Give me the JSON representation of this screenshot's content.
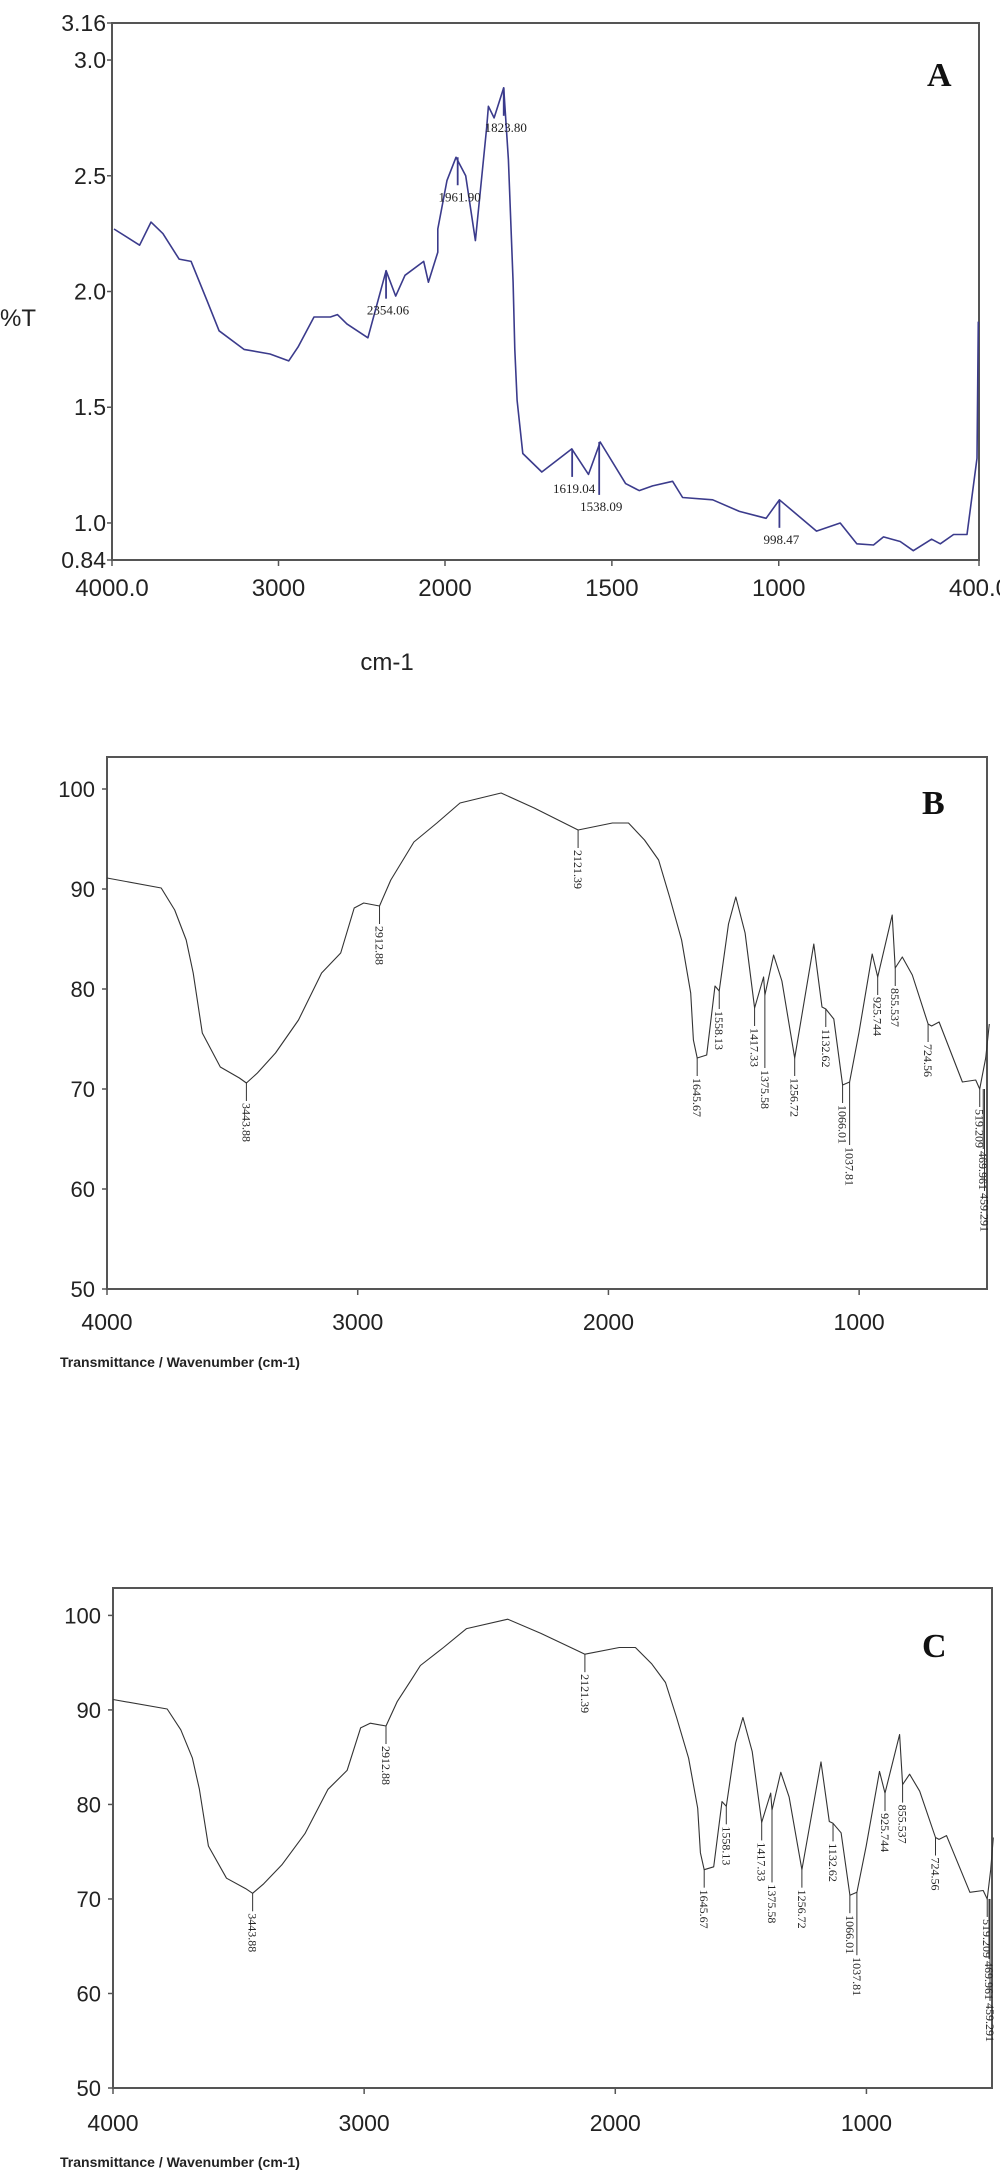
{
  "chart_data": [
    {
      "type": "line",
      "panel_label": "A",
      "ylabel": "%T",
      "xlabel": "cm-1",
      "xlim": [
        4000,
        400
      ],
      "ylim": [
        0.84,
        3.16
      ],
      "x_ticks": [
        "4000.0",
        "3000",
        "2000",
        "1500",
        "1000",
        "400.0"
      ],
      "x_tick_values": [
        4000,
        3000,
        2000,
        1500,
        1000,
        400
      ],
      "y_ticks": [
        "3.16",
        "3.0",
        "2.5",
        "2.0",
        "1.5",
        "1.0",
        "0.84"
      ],
      "y_tick_values": [
        3.16,
        3.0,
        2.5,
        2.0,
        1.5,
        1.0,
        0.84
      ],
      "color": "#3b3b8c",
      "series": [
        {
          "name": "A",
          "x": [
            3988,
            3834,
            3766,
            3694,
            3597,
            3525,
            3429,
            3357,
            3207,
            3051,
            2939,
            2883,
            2787,
            2688,
            2646,
            2589,
            2463,
            2354,
            2296,
            2240,
            2128,
            2100,
            2043,
            2043,
            1994,
            1967,
            1938,
            1909,
            1875,
            1870,
            1853,
            1824,
            1810,
            1796,
            1791,
            1784,
            1767,
            1710,
            1620,
            1570,
            1535,
            1459,
            1418,
            1378,
            1318,
            1288,
            1198,
            1118,
            1038,
            998,
            887,
            816,
            766,
            716,
            686,
            636,
            597,
            542,
            516,
            476,
            436,
            406,
            402
          ],
          "y": [
            2.27,
            2.2,
            2.3,
            2.25,
            2.14,
            2.13,
            1.96,
            1.83,
            1.75,
            1.73,
            1.7,
            1.76,
            1.89,
            1.89,
            1.9,
            1.86,
            1.8,
            2.09,
            1.98,
            2.07,
            2.13,
            2.04,
            2.17,
            2.27,
            2.48,
            2.58,
            2.5,
            2.22,
            2.71,
            2.8,
            2.75,
            2.88,
            2.57,
            2.04,
            1.75,
            1.53,
            1.3,
            1.22,
            1.32,
            1.21,
            1.35,
            1.17,
            1.14,
            1.16,
            1.18,
            1.11,
            1.1,
            1.05,
            1.02,
            1.1,
            0.965,
            1.0,
            0.91,
            0.905,
            0.94,
            0.92,
            0.88,
            0.93,
            0.91,
            0.95,
            0.95,
            1.28,
            1.87
          ]
        }
      ],
      "peaks": [
        {
          "label": "2354.06",
          "x": 2354,
          "y": 2.09
        },
        {
          "label": "1961.90",
          "x": 1962,
          "y": 2.58
        },
        {
          "label": "1823.80",
          "x": 1824,
          "y": 2.88
        },
        {
          "label": "1619.04",
          "x": 1619,
          "y": 1.32
        },
        {
          "label": "1538.09",
          "x": 1538,
          "y": 1.35
        },
        {
          "label": "998.47",
          "x": 998,
          "y": 1.1
        }
      ]
    },
    {
      "type": "line",
      "panel_label": "B",
      "xlabel": "Transmittance / Wavenumber (cm-1)",
      "xlim": [
        4000,
        490
      ],
      "ylim": [
        50,
        103.2
      ],
      "x_ticks": [
        "4000",
        "3000",
        "2000",
        "1000"
      ],
      "x_tick_values": [
        4000,
        3000,
        2000,
        1000
      ],
      "y_ticks": [
        "100",
        "90",
        "80",
        "70",
        "60",
        "50"
      ],
      "y_tick_values": [
        100,
        90,
        80,
        70,
        60,
        50
      ],
      "color": "#333333",
      "series": [
        {
          "name": "B",
          "x": [
            4000,
            3784,
            3730,
            3684,
            3656,
            3620,
            3548,
            3472,
            3444,
            3400,
            3328,
            3236,
            3144,
            3068,
            3014,
            2976,
            2913,
            2868,
            2812,
            2776,
            2684,
            2592,
            2428,
            2296,
            2121,
            1984,
            1920,
            1856,
            1800,
            1756,
            1708,
            1672,
            1661,
            1646,
            1608,
            1575,
            1558,
            1521,
            1492,
            1455,
            1417,
            1381,
            1376,
            1341,
            1308,
            1257,
            1181,
            1148,
            1133,
            1101,
            1066,
            1038,
            1001,
            948,
            926,
            868,
            856,
            828,
            788,
            725,
            711,
            681,
            588,
            535,
            519,
            495,
            481
          ],
          "y": [
            91.1,
            90.1,
            87.9,
            84.9,
            81.6,
            75.6,
            72.2,
            71.1,
            70.6,
            71.6,
            73.6,
            76.9,
            81.6,
            83.6,
            88.1,
            88.6,
            88.3,
            90.9,
            93.2,
            94.7,
            96.6,
            98.6,
            99.6,
            98.1,
            95.9,
            96.6,
            96.6,
            94.9,
            92.9,
            89.2,
            84.9,
            79.6,
            74.9,
            73.1,
            73.4,
            80.3,
            79.8,
            86.5,
            89.2,
            85.6,
            78.1,
            81.2,
            79.4,
            83.4,
            80.8,
            73.1,
            84.5,
            78.2,
            78.0,
            77.0,
            70.4,
            70.7,
            75.6,
            83.5,
            81.2,
            87.4,
            82.1,
            83.2,
            81.4,
            76.5,
            76.3,
            76.7,
            70.7,
            70.9,
            70.0,
            73.1,
            76.5
          ]
        }
      ],
      "peaks": [
        {
          "label": "3443.88",
          "x": 3444,
          "y": 70.6
        },
        {
          "label": "2912.88",
          "x": 2913,
          "y": 88.3
        },
        {
          "label": "2121.39",
          "x": 2121,
          "y": 95.9
        },
        {
          "label": "1645.67",
          "x": 1646,
          "y": 73.1
        },
        {
          "label": "1558.13",
          "x": 1558,
          "y": 79.8
        },
        {
          "label": "1417.33",
          "x": 1417,
          "y": 78.1
        },
        {
          "label": "1375.58",
          "x": 1376,
          "y": 79.4
        },
        {
          "label": "1256.72",
          "x": 1257,
          "y": 73.1
        },
        {
          "label": "1132.62",
          "x": 1133,
          "y": 78.0
        },
        {
          "label": "1066.01",
          "x": 1066,
          "y": 70.4
        },
        {
          "label": "1037.81",
          "x": 1038,
          "y": 70.7
        },
        {
          "label": "925.744",
          "x": 926,
          "y": 81.2
        },
        {
          "label": "855.537",
          "x": 856,
          "y": 82.1
        },
        {
          "label": "724.56",
          "x": 725,
          "y": 76.5
        },
        {
          "label": "519.209",
          "x": 519,
          "y": 70.0
        },
        {
          "label": "469.961",
          "x": 505,
          "y": 70.0
        },
        {
          "label": "459.291",
          "x": 500,
          "y": 70.0
        }
      ]
    },
    {
      "type": "line",
      "panel_label": "C",
      "xlabel": "Transmittance / Wavenumber (cm-1)",
      "xlim": [
        4000,
        500
      ],
      "ylim": [
        50,
        102.9
      ],
      "x_ticks": [
        "4000",
        "3000",
        "2000",
        "1000"
      ],
      "x_tick_values": [
        4000,
        3000,
        2000,
        1000
      ],
      "y_ticks": [
        "100",
        "90",
        "80",
        "70",
        "60",
        "50"
      ],
      "y_tick_values": [
        100,
        90,
        80,
        70,
        60,
        50
      ],
      "color": "#333333",
      "series": [
        {
          "name": "C",
          "x": [
            4000,
            3784,
            3730,
            3684,
            3656,
            3620,
            3548,
            3472,
            3444,
            3400,
            3328,
            3236,
            3144,
            3068,
            3014,
            2976,
            2913,
            2868,
            2812,
            2776,
            2684,
            2592,
            2428,
            2296,
            2121,
            1984,
            1920,
            1856,
            1800,
            1756,
            1708,
            1672,
            1661,
            1646,
            1608,
            1575,
            1558,
            1521,
            1492,
            1455,
            1417,
            1381,
            1376,
            1341,
            1308,
            1257,
            1181,
            1148,
            1133,
            1101,
            1066,
            1038,
            1001,
            948,
            926,
            868,
            856,
            828,
            788,
            725,
            711,
            681,
            588,
            535,
            519,
            505,
            495
          ],
          "y": [
            91.1,
            90.1,
            87.9,
            84.9,
            81.6,
            75.6,
            72.2,
            71.1,
            70.6,
            71.6,
            73.6,
            76.9,
            81.6,
            83.6,
            88.1,
            88.6,
            88.3,
            90.9,
            93.2,
            94.7,
            96.6,
            98.6,
            99.6,
            98.1,
            95.9,
            96.6,
            96.6,
            94.9,
            92.9,
            89.2,
            84.9,
            79.6,
            74.9,
            73.1,
            73.4,
            80.3,
            79.8,
            86.5,
            89.2,
            85.6,
            78.1,
            81.2,
            79.4,
            83.4,
            80.8,
            73.1,
            84.5,
            78.2,
            78.0,
            77.0,
            70.4,
            70.7,
            75.6,
            83.5,
            81.2,
            87.4,
            82.1,
            83.2,
            81.4,
            76.5,
            76.3,
            76.7,
            70.7,
            70.9,
            70.0,
            73.1,
            76.5
          ]
        }
      ],
      "peaks": [
        {
          "label": "3443.88",
          "x": 3444,
          "y": 70.6
        },
        {
          "label": "2912.88",
          "x": 2913,
          "y": 88.3
        },
        {
          "label": "2121.39",
          "x": 2121,
          "y": 95.9
        },
        {
          "label": "1645.67",
          "x": 1646,
          "y": 73.1
        },
        {
          "label": "1558.13",
          "x": 1558,
          "y": 79.8
        },
        {
          "label": "1417.33",
          "x": 1417,
          "y": 78.1
        },
        {
          "label": "1375.58",
          "x": 1376,
          "y": 79.4
        },
        {
          "label": "1256.72",
          "x": 1257,
          "y": 73.1
        },
        {
          "label": "1132.62",
          "x": 1133,
          "y": 78.0
        },
        {
          "label": "1066.01",
          "x": 1066,
          "y": 70.4
        },
        {
          "label": "1037.81",
          "x": 1038,
          "y": 70.7
        },
        {
          "label": "925.744",
          "x": 926,
          "y": 81.2
        },
        {
          "label": "855.537",
          "x": 856,
          "y": 82.1
        },
        {
          "label": "724.56",
          "x": 725,
          "y": 76.5
        },
        {
          "label": "519.209",
          "x": 519,
          "y": 70.0
        },
        {
          "label": "469.961",
          "x": 512,
          "y": 70.0
        },
        {
          "label": "459.291",
          "x": 508,
          "y": 70.0
        }
      ]
    }
  ]
}
